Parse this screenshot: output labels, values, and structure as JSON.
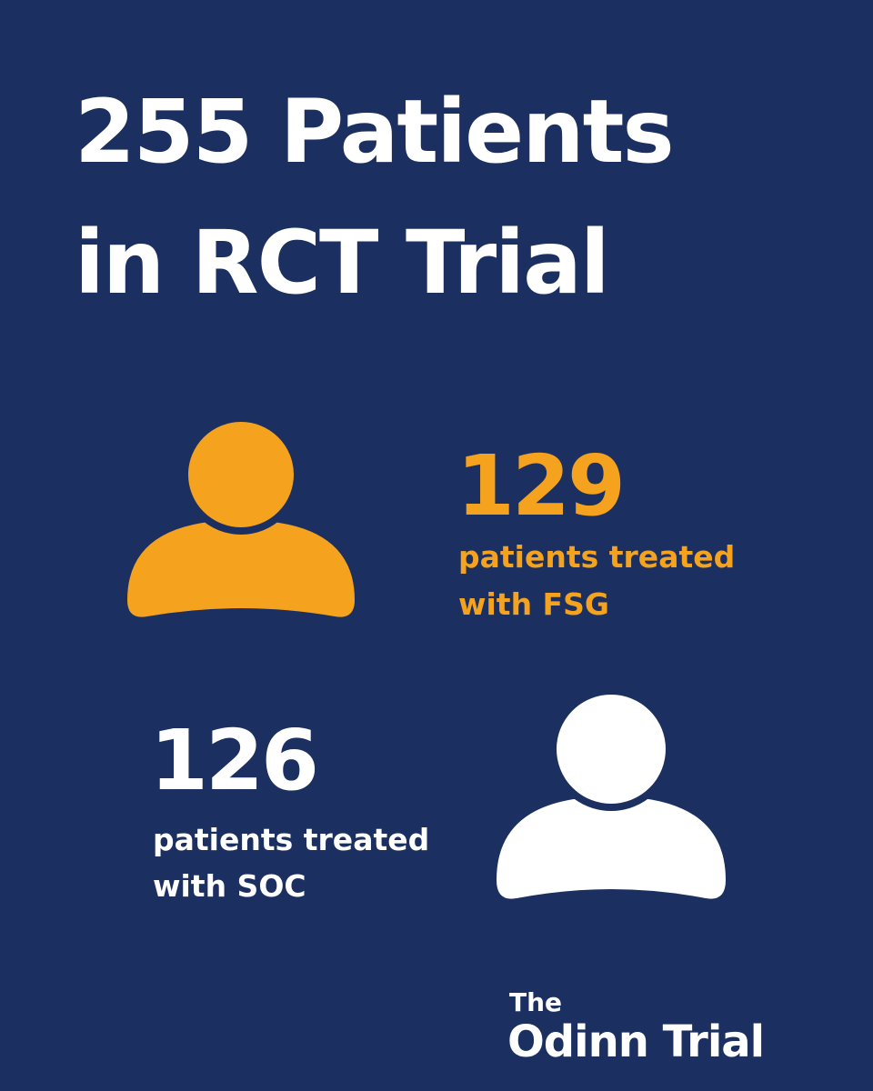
{
  "title": {
    "lines": [
      "255 Patients",
      "in RCT Trial"
    ]
  },
  "groups": [
    {
      "count": 129,
      "label_lines": [
        "patients treated",
        "with FSG"
      ]
    },
    {
      "count": 126,
      "label_lines": [
        "patients treated",
        "with SOC"
      ]
    }
  ],
  "logo": {
    "small": "The",
    "large": "Odinn Trial"
  }
}
